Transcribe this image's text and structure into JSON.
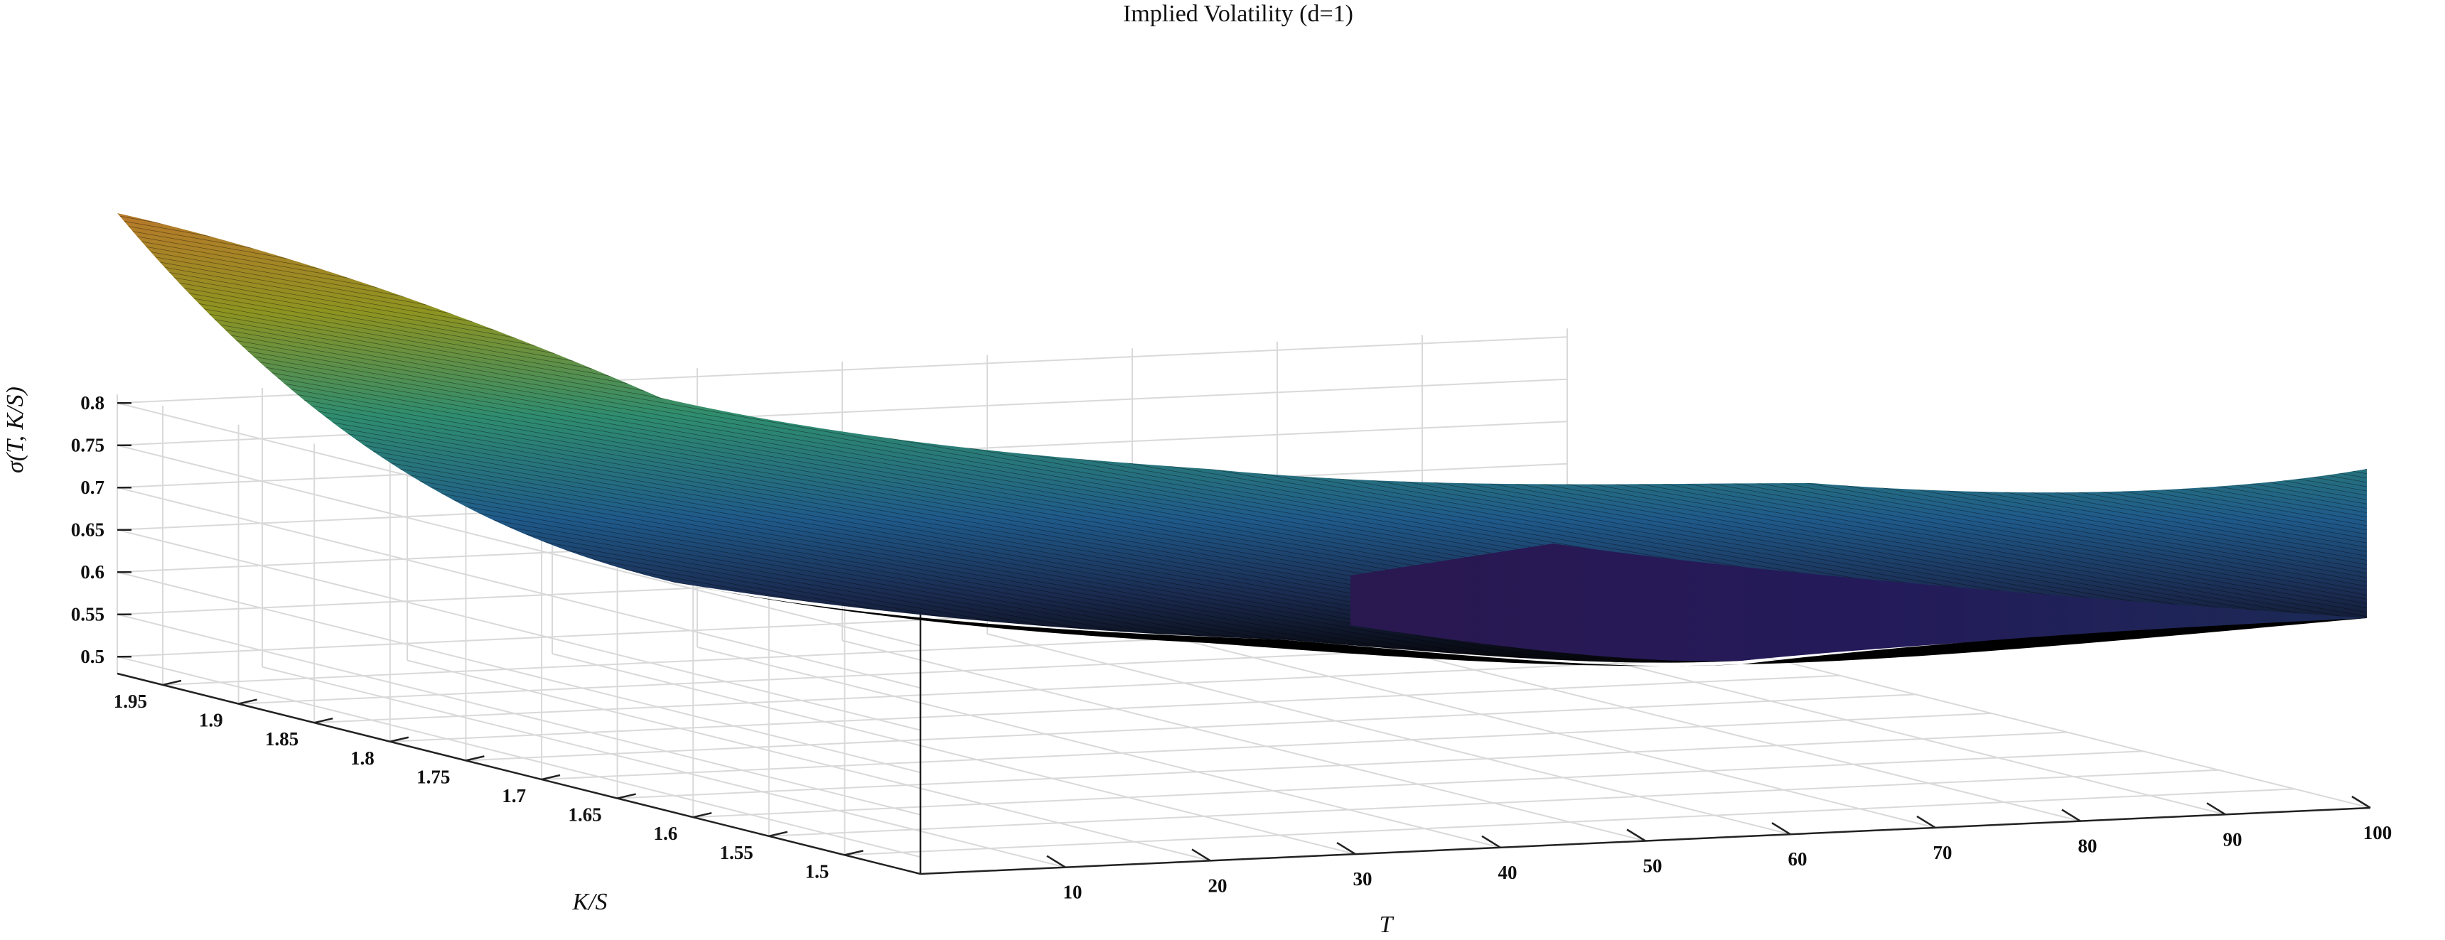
{
  "chart_data": {
    "type": "surface",
    "title": "Implied Volatility (d=1)",
    "xlabel": "T",
    "ylabel": "K/S",
    "zlabel": "σ(T, K/S)",
    "x_range": [
      0,
      100
    ],
    "y_range": [
      1.45,
      1.98
    ],
    "z_range": [
      0.48,
      0.81
    ],
    "x_ticks": [
      10,
      20,
      30,
      40,
      50,
      60,
      70,
      80,
      90,
      100
    ],
    "y_ticks": [
      "1.5",
      "1.55",
      "1.6",
      "1.65",
      "1.7",
      "1.75",
      "1.8",
      "1.85",
      "1.9",
      "1.95"
    ],
    "z_ticks": [
      "0.5",
      "0.55",
      "0.6",
      "0.65",
      "0.7",
      "0.75",
      "0.8"
    ],
    "x_tick_labels": [
      "10",
      "20",
      "30",
      "40",
      "50",
      "60",
      "70",
      "80",
      "90",
      "100"
    ],
    "grid": true,
    "colormap": "viridis",
    "edge_color": "#000000",
    "surface_points": [
      {
        "T": 0,
        "K_S": 1.98,
        "sigma": 0.767
      },
      {
        "T": 0,
        "K_S": 1.45,
        "sigma": 0.682
      },
      {
        "T": 100,
        "K_S": 1.98,
        "sigma": 0.525
      },
      {
        "T": 100,
        "K_S": 1.45,
        "sigma": 0.505
      }
    ]
  }
}
